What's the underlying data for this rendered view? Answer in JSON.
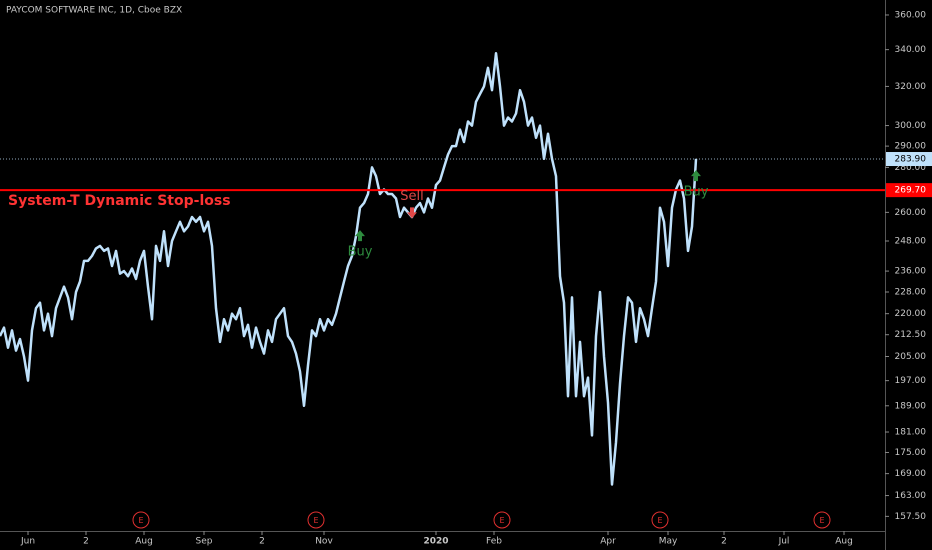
{
  "chart_data": {
    "type": "line",
    "title": "PAYCOM SOFTWARE INC, 1D, Cboe BZX",
    "log_scale": true,
    "ylim": [
      369,
      154
    ],
    "yticks": [
      {
        "value": 360,
        "label": "360.00"
      },
      {
        "value": 340,
        "label": "340.00"
      },
      {
        "value": 320,
        "label": "320.00"
      },
      {
        "value": 300,
        "label": "300.00"
      },
      {
        "value": 290,
        "label": "290.00"
      },
      {
        "value": 280,
        "label": "280.00"
      },
      {
        "value": 260,
        "label": "260.00"
      },
      {
        "value": 248,
        "label": "248.00"
      },
      {
        "value": 236,
        "label": "236.00"
      },
      {
        "value": 228,
        "label": "228.00"
      },
      {
        "value": 220,
        "label": "220.00"
      },
      {
        "value": 212.5,
        "label": "212.50"
      },
      {
        "value": 205,
        "label": "205.00"
      },
      {
        "value": 197,
        "label": "197.00"
      },
      {
        "value": 189,
        "label": "189.00"
      },
      {
        "value": 181,
        "label": "181.00"
      },
      {
        "value": 175,
        "label": "175.00"
      },
      {
        "value": 169,
        "label": "169.00"
      },
      {
        "value": 163,
        "label": "163.00"
      },
      {
        "value": 157.5,
        "label": "157.50"
      }
    ],
    "xlim": [
      0,
      221.25
    ],
    "xticks": [
      {
        "value": 7,
        "label": "Jun"
      },
      {
        "value": 21.5,
        "label": "2"
      },
      {
        "value": 36,
        "label": "Aug"
      },
      {
        "value": 51,
        "label": "Sep"
      },
      {
        "value": 65.5,
        "label": "2"
      },
      {
        "value": 81,
        "label": "Nov"
      },
      {
        "value": 109,
        "label": "2020"
      },
      {
        "value": 123.5,
        "label": "Feb"
      },
      {
        "value": 152,
        "label": "Apr"
      },
      {
        "value": 167,
        "label": "May"
      },
      {
        "value": 181,
        "label": "2"
      },
      {
        "value": 196,
        "label": "Jul"
      },
      {
        "value": 211,
        "label": "Aug"
      }
    ],
    "series": [
      {
        "color": "#bfe1fb",
        "x": [
          0,
          1,
          2,
          3,
          4,
          5,
          6,
          7,
          8,
          9,
          10,
          11,
          12,
          13,
          14,
          15,
          16,
          17,
          18,
          19,
          20,
          21,
          22,
          23,
          24,
          25,
          26,
          27,
          28,
          29,
          30,
          31,
          32,
          33,
          34,
          35,
          36,
          37,
          38,
          39,
          40,
          41,
          42,
          43,
          44,
          45,
          46,
          47,
          48,
          49,
          50,
          51,
          52,
          53,
          54,
          55,
          56,
          57,
          58,
          59,
          60,
          61,
          62,
          63,
          64,
          65,
          66,
          67,
          68,
          69,
          70,
          71,
          72,
          73,
          74,
          75,
          76,
          77,
          78,
          79,
          80,
          81,
          82,
          83,
          84,
          85,
          86,
          87,
          88,
          89,
          90,
          91,
          92,
          93,
          94,
          95,
          96,
          97,
          98,
          99,
          100,
          101,
          102,
          103,
          104,
          105,
          106,
          107,
          108,
          109,
          110,
          111,
          112,
          113,
          114,
          115,
          116,
          117,
          118,
          119,
          120,
          121,
          122,
          123,
          124,
          125,
          126,
          127,
          128,
          129,
          130,
          131,
          132,
          133,
          134,
          135,
          136,
          137,
          138,
          139,
          140,
          141,
          142,
          143,
          144,
          145,
          146,
          147,
          148,
          149,
          150,
          151,
          152,
          153,
          154,
          155,
          156,
          157,
          158,
          159,
          160,
          161,
          162,
          163,
          164,
          165,
          166,
          167,
          168,
          169,
          170,
          171,
          172,
          173,
          174
        ],
        "values": [
          212,
          215,
          208,
          214,
          207,
          211,
          205,
          197,
          214,
          222,
          224,
          214,
          220,
          212,
          222,
          226,
          230,
          226,
          218,
          228,
          232,
          240,
          240,
          242,
          245,
          246,
          244,
          245,
          238,
          244,
          235,
          236,
          234,
          237,
          233,
          240,
          244,
          230,
          218,
          246,
          240,
          252,
          238,
          248,
          252,
          256,
          252,
          254,
          258,
          256,
          258,
          252,
          256,
          246,
          222,
          210,
          218,
          214,
          220,
          218,
          222,
          212,
          216,
          208,
          215,
          210,
          206,
          214,
          210,
          218,
          220,
          222,
          212,
          210,
          206,
          200,
          189,
          202,
          214,
          212,
          218,
          214,
          218,
          216,
          220,
          226,
          232,
          238,
          242,
          250,
          262,
          264,
          268,
          280,
          276,
          268,
          270,
          268,
          268,
          266,
          258,
          262,
          260,
          258,
          262,
          264,
          260,
          266,
          262,
          272,
          274,
          280,
          286,
          290,
          290,
          298,
          292,
          302,
          300,
          312,
          316,
          320,
          330,
          318,
          338,
          320,
          300,
          304,
          302,
          306,
          318,
          312,
          300,
          304,
          294,
          300,
          284,
          296,
          284,
          276,
          234,
          224,
          192,
          226,
          192,
          210,
          192,
          198,
          180,
          212,
          228,
          205,
          190,
          166,
          178,
          196,
          212,
          226,
          224,
          210,
          222,
          218,
          212,
          222,
          232,
          262,
          256,
          238,
          262,
          270,
          274,
          266,
          244,
          254,
          284
        ]
      }
    ],
    "stop_loss": {
      "label": "System-T Dynamic Stop-loss",
      "value": 269.7,
      "value_label": "269.70",
      "color": "#ff0000"
    },
    "last_price": {
      "value": 283.9,
      "value_label": "283.90",
      "color": "#bfe1fb"
    },
    "signals": [
      {
        "label": "Buy",
        "x": 90,
        "y": 250,
        "direction": "up",
        "color": "#2e8b3e"
      },
      {
        "label": "Sell",
        "x": 103,
        "y": 260,
        "direction": "down",
        "color": "#e04848"
      },
      {
        "label": "Buy",
        "x": 174,
        "y": 276,
        "direction": "up",
        "color": "#2e8b3e"
      }
    ],
    "events": [
      {
        "x": 35.25,
        "label": "E"
      },
      {
        "x": 79,
        "label": "E"
      },
      {
        "x": 125.5,
        "label": "E"
      },
      {
        "x": 165,
        "label": "E"
      },
      {
        "x": 205.5,
        "label": "E"
      }
    ]
  }
}
